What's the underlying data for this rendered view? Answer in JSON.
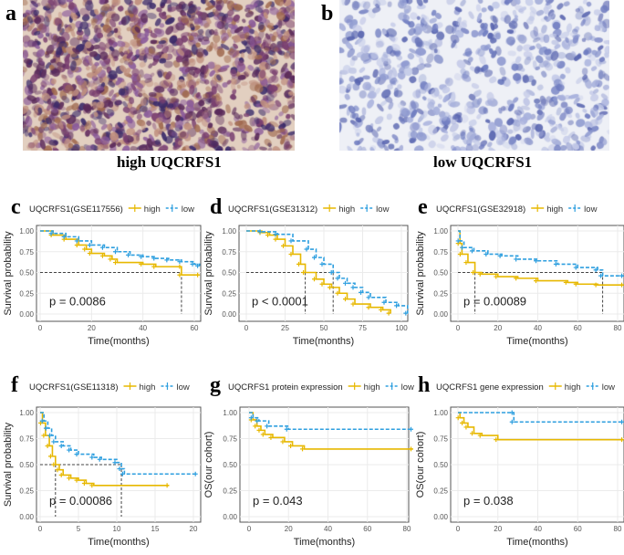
{
  "panels_images": [
    {
      "letter": "a",
      "caption": "high UQCRFS1"
    },
    {
      "letter": "b",
      "caption": "low UQCRFS1"
    }
  ],
  "colors": {
    "high": "#E7B800",
    "low": "#2E9FDF"
  },
  "chart_data": [
    {
      "letter": "c",
      "type": "line",
      "title": "UQCRFS1(GSE117556)",
      "legend": [
        "high",
        "low"
      ],
      "xlabel": "Time(months)",
      "ylabel": "Survival probability",
      "xticks": [
        0,
        20,
        40,
        60
      ],
      "yticks": [
        "0.00",
        "0.25",
        "0.50",
        "0.75",
        "1.00"
      ],
      "xlim": [
        0,
        62
      ],
      "ylim": [
        0,
        1
      ],
      "grid": true,
      "pvalue": "p = 0.0086",
      "medians": [
        55
      ],
      "series": [
        {
          "name": "high",
          "points": [
            [
              0,
              1
            ],
            [
              5,
              0.95
            ],
            [
              10,
              0.9
            ],
            [
              15,
              0.83
            ],
            [
              18,
              0.78
            ],
            [
              20,
              0.73
            ],
            [
              25,
              0.7
            ],
            [
              28,
              0.66
            ],
            [
              30,
              0.62
            ],
            [
              40,
              0.6
            ],
            [
              45,
              0.57
            ],
            [
              55,
              0.57
            ],
            [
              55,
              0.47
            ],
            [
              62,
              0.47
            ]
          ]
        },
        {
          "name": "low",
          "points": [
            [
              0,
              1
            ],
            [
              5,
              0.97
            ],
            [
              10,
              0.93
            ],
            [
              15,
              0.88
            ],
            [
              20,
              0.83
            ],
            [
              25,
              0.8
            ],
            [
              30,
              0.75
            ],
            [
              35,
              0.71
            ],
            [
              40,
              0.69
            ],
            [
              45,
              0.67
            ],
            [
              50,
              0.65
            ],
            [
              55,
              0.63
            ],
            [
              60,
              0.6
            ],
            [
              62,
              0.58
            ]
          ]
        }
      ]
    },
    {
      "letter": "d",
      "type": "line",
      "title": "UQCRFS1(GSE31312)",
      "legend": [
        "high",
        "low"
      ],
      "xlabel": "Time(months)",
      "ylabel": "Survival probability",
      "xticks": [
        0,
        25,
        50,
        75,
        100
      ],
      "yticks": [
        "0.00",
        "0.25",
        "0.50",
        "0.75",
        "1.00"
      ],
      "xlim": [
        0,
        105
      ],
      "ylim": [
        0,
        1
      ],
      "grid": true,
      "pvalue": "p < 0.0001",
      "medians": [
        38,
        56
      ],
      "series": [
        {
          "name": "high",
          "points": [
            [
              0,
              1
            ],
            [
              10,
              0.98
            ],
            [
              15,
              0.95
            ],
            [
              20,
              0.9
            ],
            [
              25,
              0.82
            ],
            [
              30,
              0.72
            ],
            [
              35,
              0.6
            ],
            [
              38,
              0.5
            ],
            [
              45,
              0.42
            ],
            [
              50,
              0.36
            ],
            [
              55,
              0.32
            ],
            [
              60,
              0.25
            ],
            [
              65,
              0.18
            ],
            [
              70,
              0.12
            ],
            [
              80,
              0.08
            ],
            [
              88,
              0.05
            ],
            [
              93,
              0.01
            ]
          ]
        },
        {
          "name": "low",
          "points": [
            [
              0,
              1
            ],
            [
              10,
              0.99
            ],
            [
              20,
              0.96
            ],
            [
              30,
              0.88
            ],
            [
              40,
              0.78
            ],
            [
              45,
              0.68
            ],
            [
              50,
              0.6
            ],
            [
              56,
              0.5
            ],
            [
              60,
              0.43
            ],
            [
              65,
              0.37
            ],
            [
              70,
              0.32
            ],
            [
              75,
              0.26
            ],
            [
              80,
              0.2
            ],
            [
              90,
              0.14
            ],
            [
              98,
              0.1
            ],
            [
              104,
              0.01
            ]
          ]
        }
      ]
    },
    {
      "letter": "e",
      "type": "line",
      "title": "UQCRFS1(GSE32918)",
      "legend": [
        "high",
        "low"
      ],
      "xlabel": "Time(months)",
      "ylabel": "Survival probability",
      "xticks": [
        0,
        20,
        40,
        60,
        80
      ],
      "yticks": [
        "0.00",
        "0.25",
        "0.50",
        "0.75",
        "1.00"
      ],
      "xlim": [
        0,
        83
      ],
      "ylim": [
        0,
        1
      ],
      "grid": true,
      "pvalue": "p = 0.00089",
      "medians": [
        8.5,
        72.5
      ],
      "series": [
        {
          "name": "high",
          "points": [
            [
              0,
              1
            ],
            [
              1,
              0.85
            ],
            [
              2,
              0.72
            ],
            [
              5,
              0.62
            ],
            [
              8.5,
              0.5
            ],
            [
              12,
              0.48
            ],
            [
              20,
              0.45
            ],
            [
              30,
              0.43
            ],
            [
              40,
              0.4
            ],
            [
              55,
              0.38
            ],
            [
              60,
              0.36
            ],
            [
              70,
              0.35
            ],
            [
              83,
              0.35
            ]
          ]
        },
        {
          "name": "low",
          "points": [
            [
              0,
              1
            ],
            [
              1,
              0.88
            ],
            [
              3,
              0.8
            ],
            [
              8,
              0.76
            ],
            [
              15,
              0.72
            ],
            [
              22,
              0.7
            ],
            [
              30,
              0.66
            ],
            [
              40,
              0.64
            ],
            [
              50,
              0.6
            ],
            [
              60,
              0.56
            ],
            [
              70,
              0.53
            ],
            [
              72.5,
              0.46
            ],
            [
              83,
              0.46
            ]
          ]
        }
      ]
    },
    {
      "letter": "f",
      "type": "line",
      "title": "UQCRFS1(GSE11318)",
      "legend": [
        "high",
        "low"
      ],
      "xlabel": "Time(months)",
      "ylabel": "Survival probability",
      "xticks": [
        0,
        5,
        10,
        15,
        20
      ],
      "yticks": [
        "0.00",
        "0.25",
        "0.50",
        "0.75",
        "1.00"
      ],
      "xlim": [
        0,
        20.5
      ],
      "ylim": [
        0,
        1
      ],
      "grid": true,
      "pvalue": "p = 0.00086",
      "medians": [
        2,
        10.6
      ],
      "series": [
        {
          "name": "high",
          "points": [
            [
              0,
              1
            ],
            [
              0.3,
              0.9
            ],
            [
              0.7,
              0.78
            ],
            [
              1.2,
              0.68
            ],
            [
              1.6,
              0.58
            ],
            [
              2,
              0.5
            ],
            [
              2.5,
              0.45
            ],
            [
              3,
              0.4
            ],
            [
              4,
              0.37
            ],
            [
              5,
              0.35
            ],
            [
              6,
              0.32
            ],
            [
              7,
              0.3
            ],
            [
              16.8,
              0.3
            ]
          ]
        },
        {
          "name": "low",
          "points": [
            [
              0,
              1
            ],
            [
              0.5,
              0.92
            ],
            [
              1,
              0.85
            ],
            [
              1.5,
              0.78
            ],
            [
              2,
              0.72
            ],
            [
              3,
              0.68
            ],
            [
              4,
              0.64
            ],
            [
              5,
              0.6
            ],
            [
              7,
              0.57
            ],
            [
              8,
              0.55
            ],
            [
              10,
              0.52
            ],
            [
              10.6,
              0.46
            ],
            [
              11,
              0.41
            ],
            [
              20.5,
              0.41
            ]
          ]
        }
      ]
    },
    {
      "letter": "g",
      "type": "line",
      "title": "UQCRFS1 protein expression",
      "legend": [
        "high",
        "low"
      ],
      "xlabel": "Time(months)",
      "ylabel": "OS(our cohort)",
      "xticks": [
        0,
        20,
        40,
        60,
        80
      ],
      "yticks": [
        "0.00",
        "0.25",
        "0.50",
        "0.75",
        "1.00"
      ],
      "xlim": [
        0,
        83
      ],
      "ylim": [
        0,
        1
      ],
      "grid": true,
      "pvalue": "p = 0.043",
      "medians": [],
      "series": [
        {
          "name": "high",
          "points": [
            [
              0,
              1
            ],
            [
              2,
              0.93
            ],
            [
              4,
              0.87
            ],
            [
              6,
              0.83
            ],
            [
              8,
              0.79
            ],
            [
              12,
              0.76
            ],
            [
              18,
              0.72
            ],
            [
              22,
              0.68
            ],
            [
              28,
              0.65
            ],
            [
              83,
              0.65
            ]
          ]
        },
        {
          "name": "low",
          "points": [
            [
              0,
              1
            ],
            [
              2,
              0.95
            ],
            [
              5,
              0.92
            ],
            [
              10,
              0.87
            ],
            [
              20,
              0.84
            ],
            [
              83,
              0.84
            ]
          ]
        }
      ]
    },
    {
      "letter": "h",
      "type": "line",
      "title": "UQCRFS1 gene expression",
      "legend": [
        "high",
        "low"
      ],
      "xlabel": "Time(months)",
      "ylabel": "OS(our cohort)",
      "xticks": [
        0,
        20,
        40,
        60,
        80
      ],
      "yticks": [
        "0.00",
        "0.25",
        "0.50",
        "0.75",
        "1.00"
      ],
      "xlim": [
        0,
        83
      ],
      "ylim": [
        0,
        1
      ],
      "grid": true,
      "pvalue": "p = 0.038",
      "medians": [],
      "series": [
        {
          "name": "high",
          "points": [
            [
              0,
              1
            ],
            [
              1,
              0.95
            ],
            [
              3,
              0.9
            ],
            [
              5,
              0.86
            ],
            [
              8,
              0.8
            ],
            [
              12,
              0.78
            ],
            [
              20,
              0.74
            ],
            [
              83,
              0.74
            ]
          ]
        },
        {
          "name": "low",
          "points": [
            [
              0,
              1
            ],
            [
              28,
              1
            ],
            [
              28,
              0.91
            ],
            [
              83,
              0.91
            ]
          ]
        }
      ]
    }
  ]
}
